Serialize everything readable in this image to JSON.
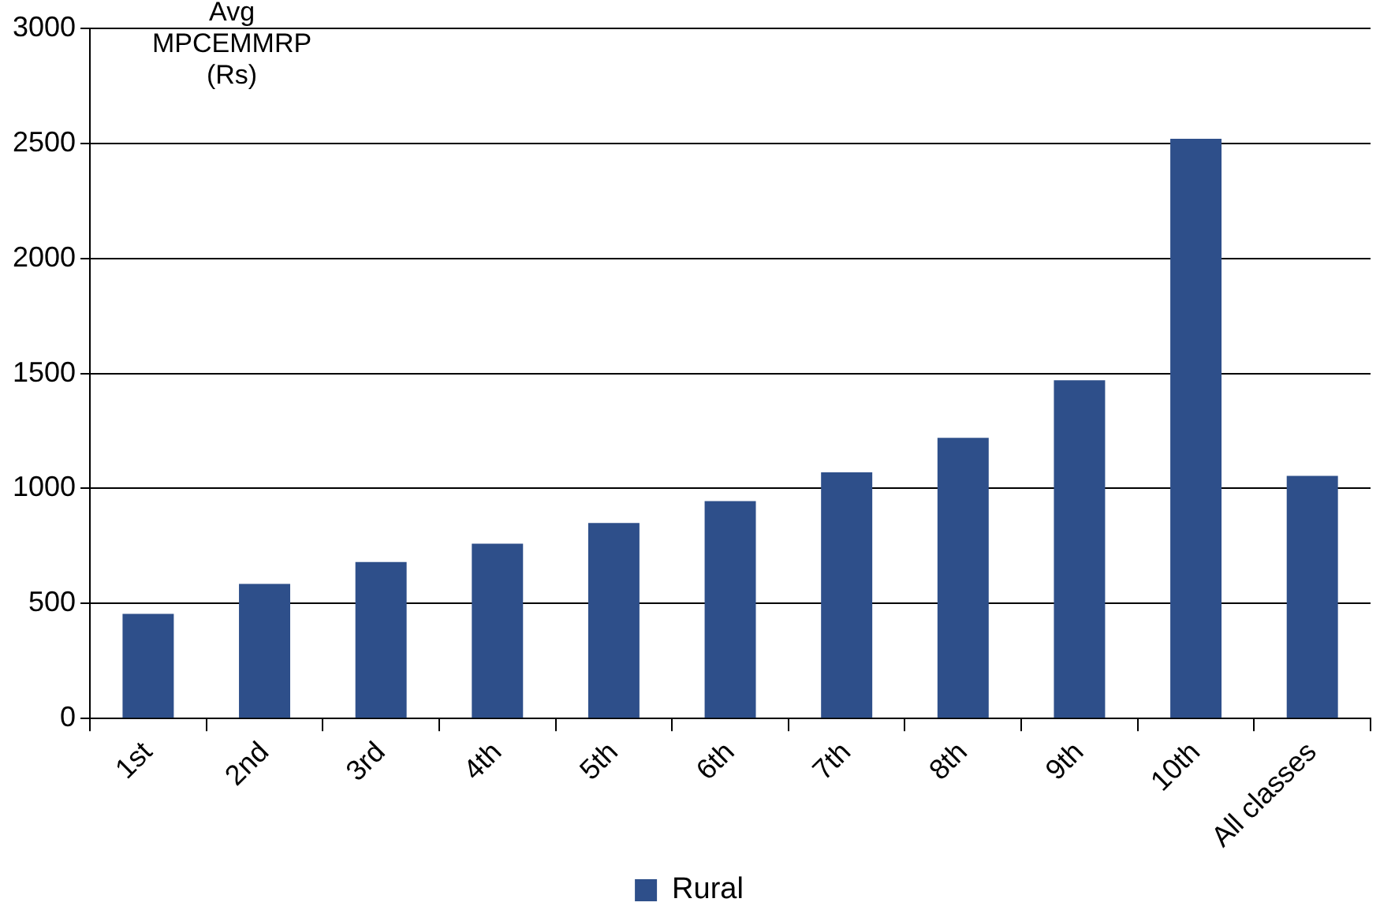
{
  "chart_data": {
    "type": "bar",
    "ylabel": "Avg MPCEMMRP (Rs)",
    "categories": [
      "1st",
      "2nd",
      "3rd",
      "4th",
      "5th",
      "6th",
      "7th",
      "8th",
      "9th",
      "10th",
      "All classes"
    ],
    "series": [
      {
        "name": "Rural",
        "color": "#2e4f8a",
        "values": [
          455,
          585,
          680,
          760,
          850,
          945,
          1070,
          1220,
          1470,
          2520,
          1055
        ]
      }
    ],
    "ylim": [
      0,
      3000
    ],
    "yticks": [
      0,
      500,
      1000,
      1500,
      2000,
      2500,
      3000
    ],
    "grid": "y",
    "legend": "bottom"
  }
}
